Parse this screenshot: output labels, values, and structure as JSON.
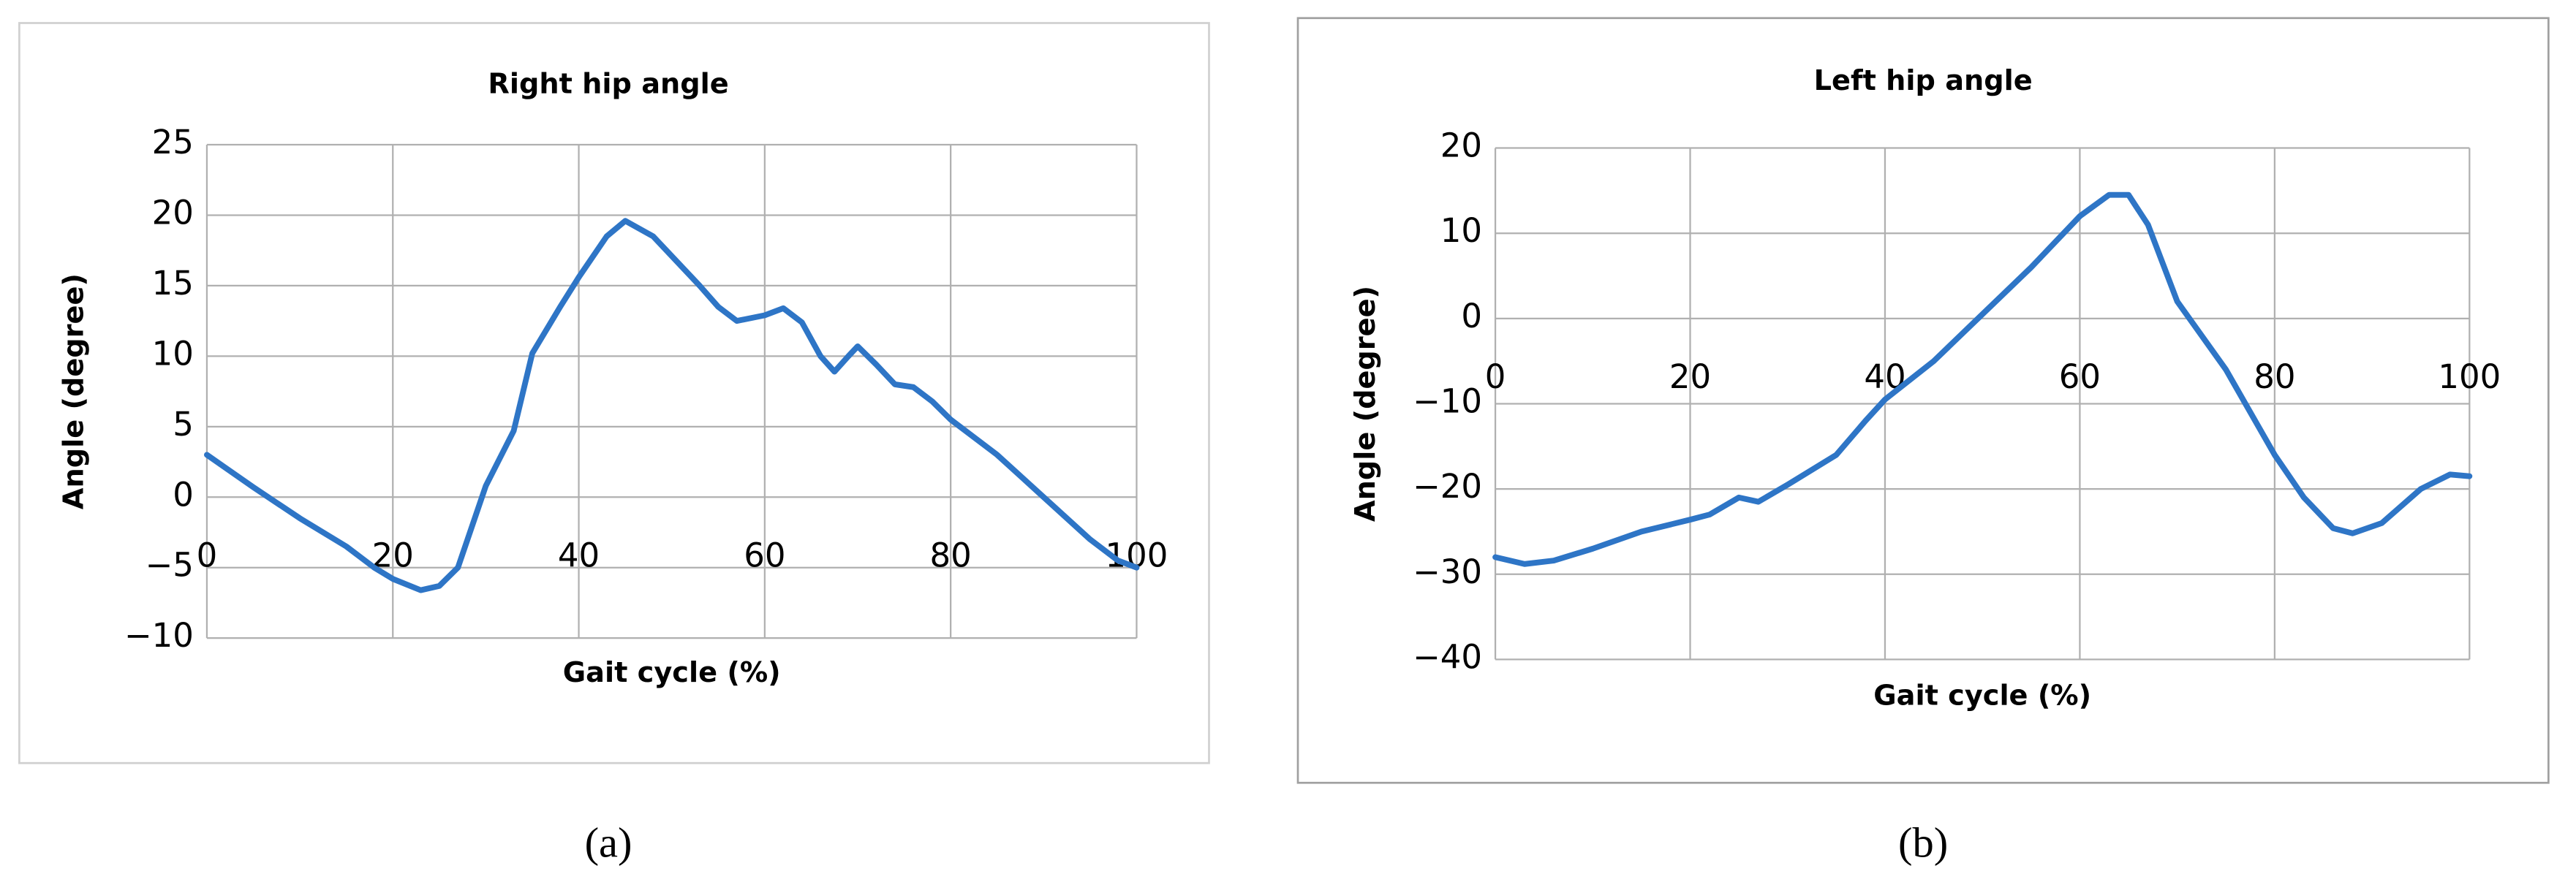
{
  "chart_data": [
    {
      "type": "line",
      "title": "Right hip angle",
      "x_label": "Gait cycle (%)",
      "y_label": "Angle (degree)",
      "caption": "(a)",
      "color": "#2e75c6",
      "grid": true,
      "xlim": [
        0,
        100
      ],
      "xticks": [
        0,
        20,
        40,
        60,
        80,
        100
      ],
      "ylim": [
        -10,
        25
      ],
      "yticks": [
        {
          "value": -10,
          "label": "−10"
        },
        {
          "value": -5,
          "label": "−5"
        },
        0,
        5,
        10,
        15,
        20,
        25
      ],
      "x": [
        0,
        5,
        10,
        15,
        18,
        20,
        23,
        25,
        27,
        30,
        33,
        35,
        38,
        40,
        43,
        45,
        48,
        50,
        53,
        55,
        57,
        60,
        62,
        64,
        66,
        67.5,
        69,
        70,
        72,
        74,
        76,
        78,
        80,
        85,
        90,
        95,
        98,
        100
      ],
      "values": [
        3,
        0.7,
        -1.5,
        -3.5,
        -5,
        -5.8,
        -6.6,
        -6.3,
        -5,
        0.8,
        4.7,
        10.2,
        13.5,
        15.6,
        18.5,
        19.6,
        18.5,
        17.1,
        15,
        13.5,
        12.5,
        12.9,
        13.4,
        12.4,
        10,
        8.9,
        10,
        10.7,
        9.4,
        8,
        7.8,
        6.8,
        5.5,
        3,
        0,
        -3,
        -4.5,
        -5
      ]
    },
    {
      "type": "line",
      "title": "Left hip angle",
      "x_label": "Gait cycle (%)",
      "y_label": "Angle (degree)",
      "caption": "(b)",
      "color": "#2e75c6",
      "grid": true,
      "xlim": [
        0,
        100
      ],
      "xticks": [
        0,
        20,
        40,
        60,
        80,
        100
      ],
      "ylim": [
        -40,
        20
      ],
      "yticks": [
        {
          "value": -40,
          "label": "−40"
        },
        {
          "value": -30,
          "label": "−30"
        },
        {
          "value": -20,
          "label": "−20"
        },
        {
          "value": -10,
          "label": "−10"
        },
        0,
        10,
        20
      ],
      "x": [
        0,
        3,
        6,
        10,
        15,
        20,
        22,
        25,
        27,
        30,
        35,
        38,
        40,
        45,
        50,
        55,
        60,
        63,
        65,
        67,
        70,
        75,
        78,
        80,
        83,
        86,
        88,
        91,
        95,
        98,
        100
      ],
      "values": [
        -28,
        -28.8,
        -28.4,
        -27,
        -25,
        -23.6,
        -23,
        -21,
        -21.5,
        -19.5,
        -16,
        -12,
        -9.5,
        -5,
        0.5,
        6,
        12,
        14.5,
        14.5,
        11,
        2,
        -6,
        -12,
        -16,
        -21,
        -24.6,
        -25.2,
        -24,
        -20,
        -18.3,
        -18.5
      ]
    }
  ]
}
